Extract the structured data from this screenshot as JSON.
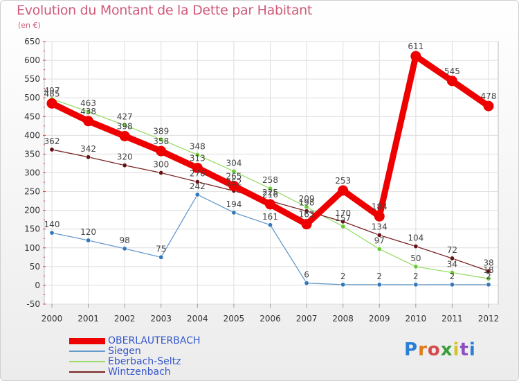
{
  "chart_data": {
    "type": "line",
    "title": "Evolution du Montant de la Dette par Habitant",
    "subtitle": "(en €)",
    "xlabel": "",
    "ylabel": "",
    "x": [
      "2000",
      "2001",
      "2002",
      "2003",
      "2004",
      "2005",
      "2006",
      "2007",
      "2008",
      "2009",
      "2010",
      "2011",
      "2012"
    ],
    "ylim": [
      -50,
      650
    ],
    "yticks": [
      -50,
      0,
      50,
      100,
      150,
      200,
      250,
      300,
      350,
      400,
      450,
      500,
      550,
      600,
      650
    ],
    "grid": true,
    "legend_position": "bottom-left",
    "series": [
      {
        "name": "OBERLAUTERBACH",
        "color": "#ee0000",
        "point_color": "#ee0000",
        "values": [
          485,
          438,
          398,
          358,
          313,
          265,
          216,
          163,
          253,
          184,
          611,
          545,
          478
        ]
      },
      {
        "name": "Siegen",
        "color": "#6699cc",
        "point_color": "#3377bb",
        "values": [
          140,
          120,
          98,
          75,
          242,
          194,
          161,
          6,
          2,
          2,
          2,
          2,
          2
        ]
      },
      {
        "name": "Eberbach-Seltz",
        "color": "#99dd66",
        "point_color": "#66cc33",
        "values": [
          497,
          463,
          427,
          389,
          348,
          304,
          258,
          209,
          157,
          97,
          50,
          34,
          18
        ]
      },
      {
        "name": "Wintzenbach",
        "color": "#772222",
        "point_color": "#661111",
        "values": [
          362,
          342,
          320,
          300,
          276,
          252,
          225,
          198,
          170,
          134,
          104,
          72,
          38
        ]
      }
    ]
  },
  "logo": {
    "letters": [
      "P",
      "r",
      "o",
      "x",
      "i",
      "t",
      "i"
    ],
    "colors": [
      "#2a7fd4",
      "#e07b1a",
      "#d64a4a",
      "#3a9e3a",
      "#d6c22a",
      "#8a4fbf",
      "#2a7fd4"
    ]
  }
}
